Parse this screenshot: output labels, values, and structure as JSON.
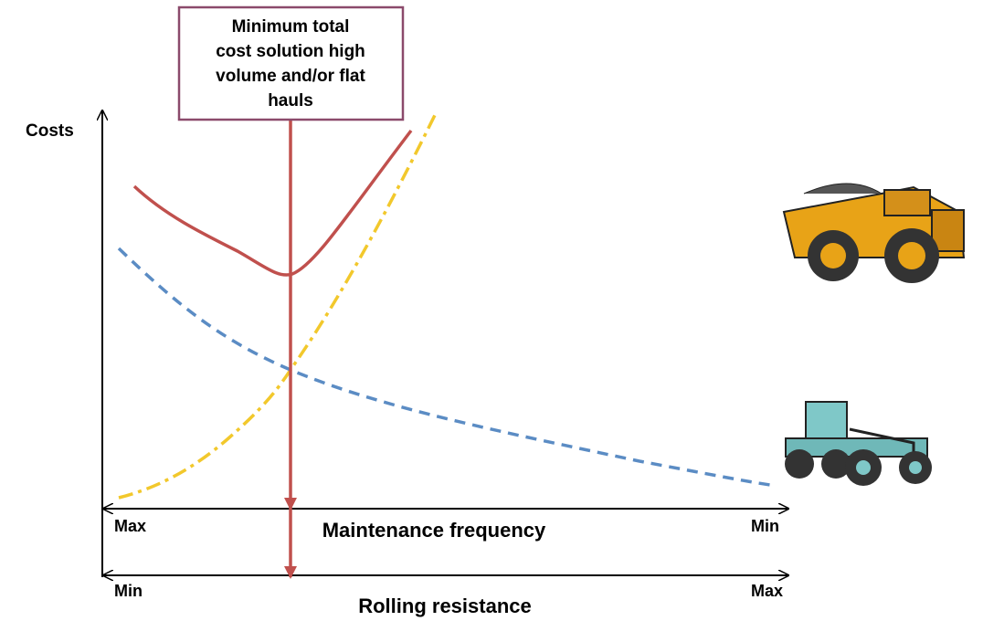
{
  "y_axis": {
    "label": "Costs"
  },
  "callout": {
    "lines": [
      "Minimum total",
      "cost solution high",
      "volume and/or flat",
      "hauls"
    ]
  },
  "maintenance_axis": {
    "label": "Maintenance frequency",
    "left": "Max",
    "right": "Min"
  },
  "rolling_axis": {
    "label": "Rolling resistance",
    "left": "Min",
    "right": "Max"
  }
}
